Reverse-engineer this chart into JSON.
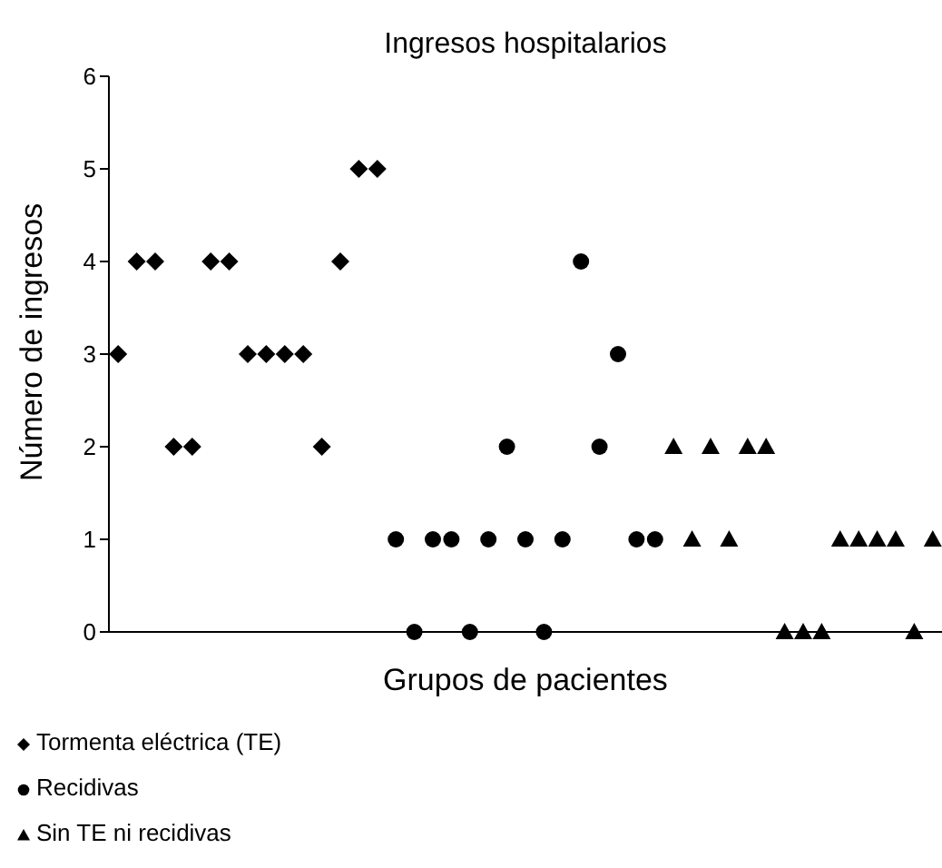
{
  "chart_data": {
    "type": "scatter",
    "title": "Ingresos hospitalarios",
    "xlabel": "Grupos de pacientes",
    "ylabel": "Número de ingresos",
    "categories": [
      null,
      null,
      null,
      null,
      null,
      null,
      null,
      null,
      null,
      null,
      null,
      null,
      null,
      null,
      null,
      null,
      null,
      null,
      null,
      null,
      null,
      null,
      null,
      null,
      null,
      null,
      null,
      null,
      null,
      null,
      null,
      null,
      null,
      null,
      null,
      null,
      null,
      null,
      null,
      null,
      null,
      null,
      null,
      null,
      null
    ],
    "ylim": [
      0,
      6
    ],
    "yticks": [
      0,
      1,
      2,
      3,
      4,
      5,
      6
    ],
    "grid": false,
    "legend": "bottom",
    "series": [
      {
        "name": "Tormenta eléctrica (TE)",
        "color": "#000000",
        "marker": "diamond",
        "values": [
          3,
          4,
          4,
          2,
          2,
          4,
          4,
          3,
          3,
          3,
          3,
          2,
          4,
          5,
          5,
          null,
          null,
          null,
          null,
          null,
          null,
          null,
          null,
          null,
          null,
          null,
          null,
          null,
          null,
          null,
          null,
          null,
          null,
          null,
          null,
          null,
          null,
          null,
          null,
          null,
          null,
          null,
          null,
          null,
          null
        ]
      },
      {
        "name": "Recidivas",
        "color": "#000000",
        "marker": "circle",
        "values": [
          null,
          null,
          null,
          null,
          null,
          null,
          null,
          null,
          null,
          null,
          null,
          null,
          null,
          null,
          null,
          1,
          0,
          1,
          1,
          0,
          1,
          2,
          1,
          0,
          1,
          4,
          2,
          3,
          1,
          1,
          null,
          null,
          null,
          null,
          null,
          null,
          null,
          null,
          null,
          null,
          null,
          null,
          null,
          null,
          null
        ]
      },
      {
        "name": "Sin TE ni recidivas",
        "color": "#000000",
        "marker": "triangle",
        "values": [
          null,
          null,
          null,
          null,
          null,
          null,
          null,
          null,
          null,
          null,
          null,
          null,
          null,
          null,
          null,
          null,
          null,
          null,
          null,
          null,
          null,
          null,
          null,
          null,
          null,
          null,
          null,
          null,
          null,
          null,
          2,
          1,
          2,
          1,
          2,
          2,
          0,
          0,
          0,
          1,
          1,
          1,
          1,
          0,
          1
        ]
      }
    ]
  }
}
